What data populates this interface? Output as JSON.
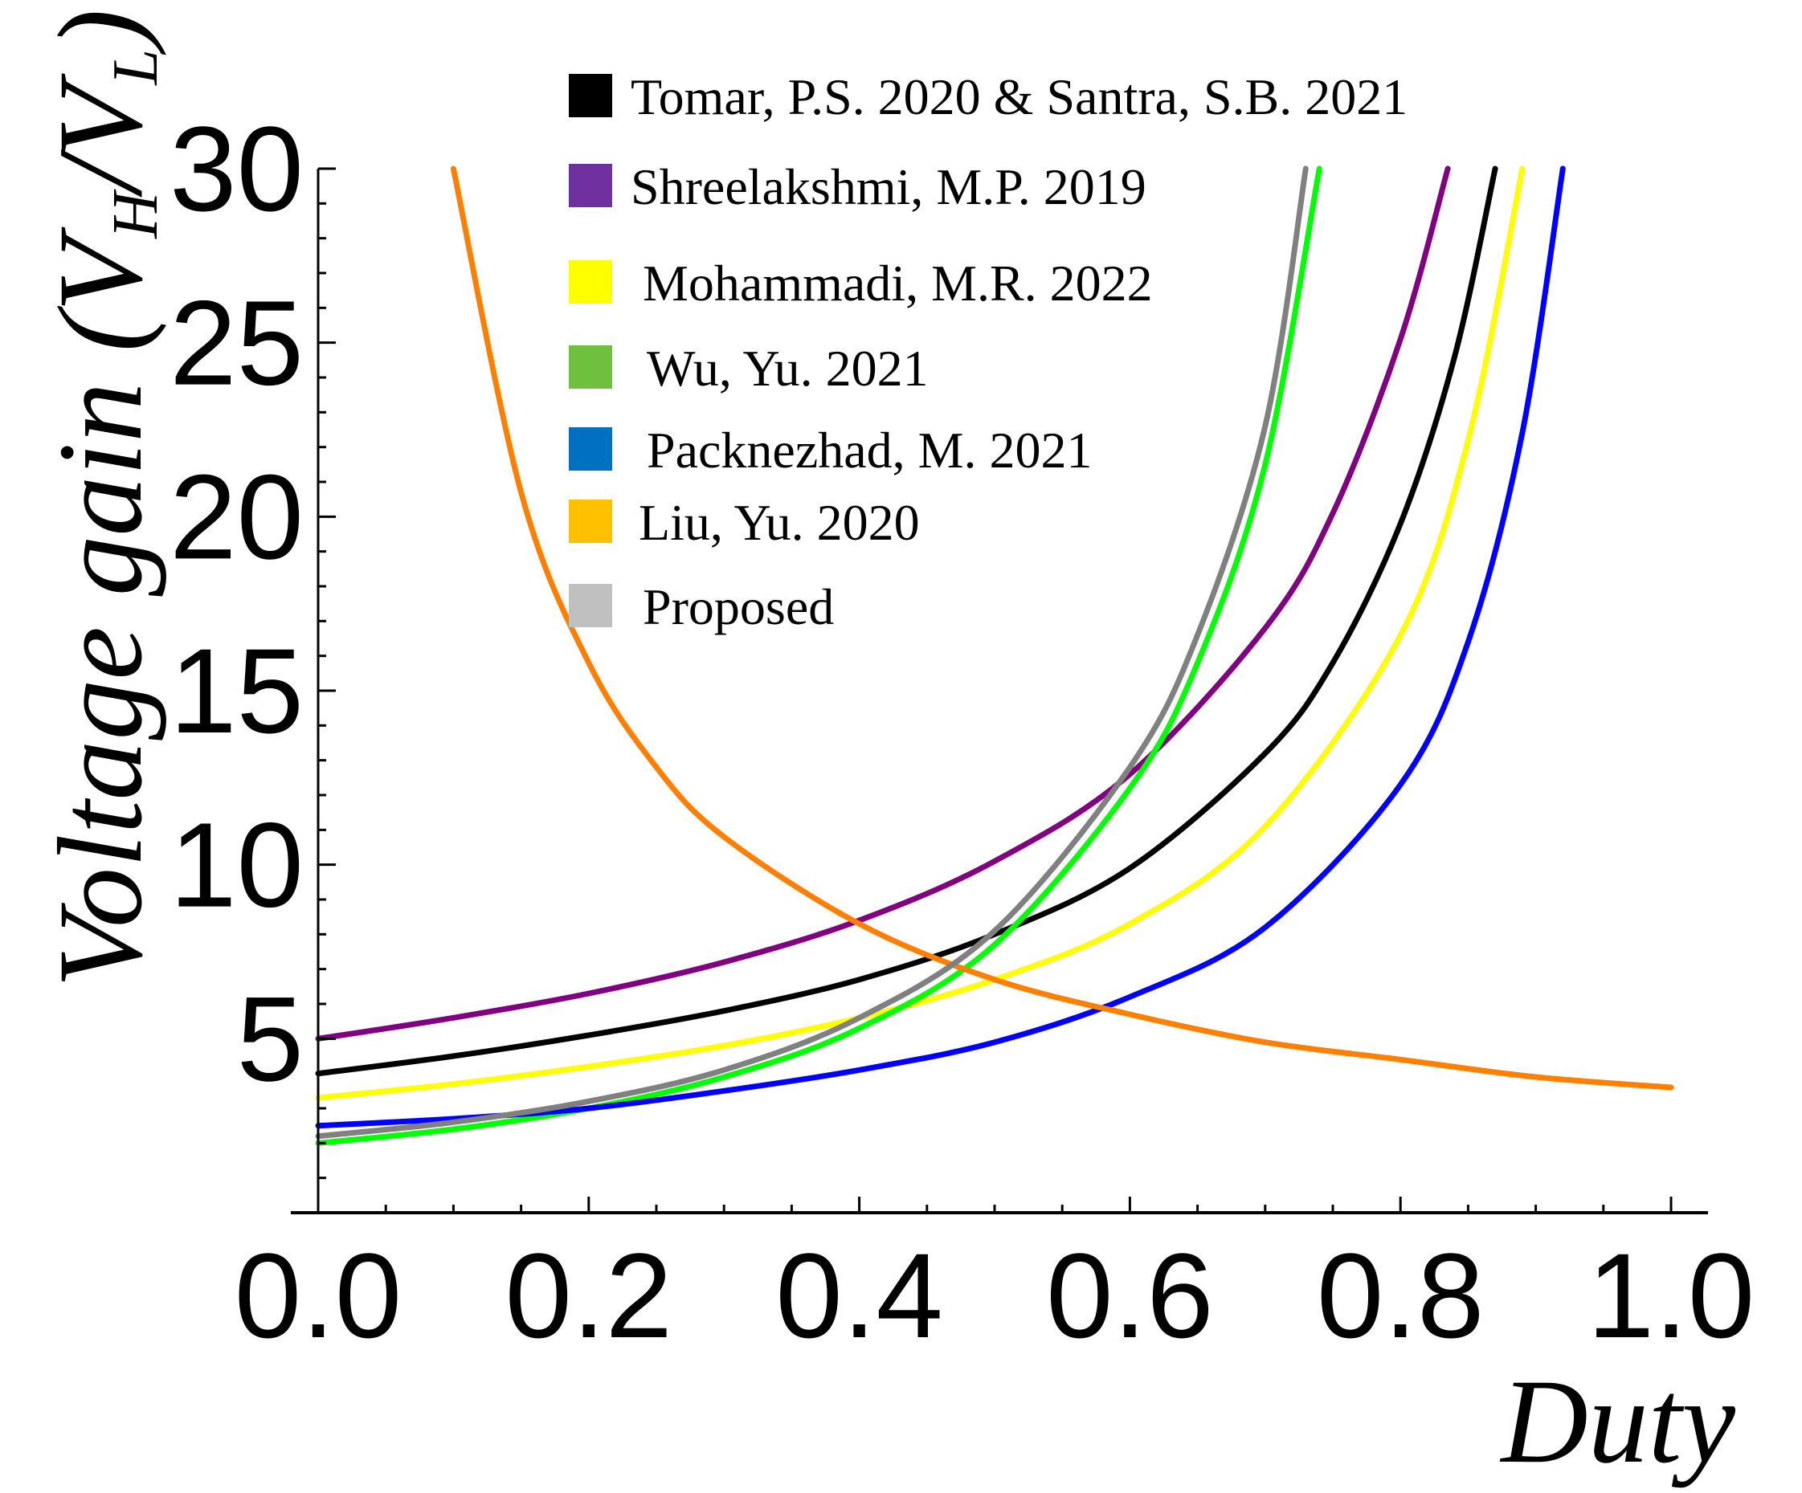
{
  "chart_data": {
    "type": "line",
    "title": "",
    "xlabel": "Duty",
    "ylabel": {
      "prefix": "Voltage gain (V",
      "sub1": "H",
      "mid": "/V",
      "sub2": "L",
      "suffix": ")"
    },
    "xlim": [
      0,
      1
    ],
    "ylim": [
      0,
      30
    ],
    "x_ticks": [
      "0.0",
      "0.2",
      "0.4",
      "0.6",
      "0.8",
      "1.0"
    ],
    "y_ticks": [
      {
        "value": 5,
        "label": "5"
      },
      {
        "value": 10,
        "label": "10"
      },
      {
        "value": 15,
        "label": "15"
      },
      {
        "value": 20,
        "label": "20"
      },
      {
        "value": 25,
        "label": "25"
      },
      {
        "value": 30,
        "label": "30"
      }
    ],
    "series": [
      {
        "name": "Tomar, P.S. 2020 & Santra, S.B. 2021",
        "legend_color": "#000000",
        "line_color": "#000000",
        "points": [
          [
            0.0,
            4.0
          ],
          [
            0.1,
            4.5
          ],
          [
            0.2,
            5.1
          ],
          [
            0.3,
            5.8
          ],
          [
            0.4,
            6.7
          ],
          [
            0.5,
            8.0
          ],
          [
            0.6,
            9.9
          ],
          [
            0.7,
            13.2
          ],
          [
            0.75,
            15.8
          ],
          [
            0.8,
            19.8
          ],
          [
            0.84,
            24.6
          ],
          [
            0.87,
            30.0
          ]
        ]
      },
      {
        "name": "Shreelakshmi, M.P. 2019",
        "legend_color": "#7030a0",
        "line_color": "#800080",
        "points": [
          [
            0.0,
            5.0
          ],
          [
            0.1,
            5.6
          ],
          [
            0.2,
            6.3
          ],
          [
            0.3,
            7.2
          ],
          [
            0.4,
            8.4
          ],
          [
            0.5,
            10.1
          ],
          [
            0.6,
            12.6
          ],
          [
            0.7,
            16.8
          ],
          [
            0.75,
            20.1
          ],
          [
            0.8,
            25.1
          ],
          [
            0.835,
            30.0
          ]
        ]
      },
      {
        "name": "Mohammadi, M.R. 2022",
        "legend_color": "#ffff00",
        "line_color": "#ffff00",
        "points": [
          [
            0.0,
            3.3
          ],
          [
            0.1,
            3.7
          ],
          [
            0.2,
            4.2
          ],
          [
            0.3,
            4.8
          ],
          [
            0.4,
            5.6
          ],
          [
            0.5,
            6.7
          ],
          [
            0.6,
            8.3
          ],
          [
            0.7,
            11.1
          ],
          [
            0.8,
            16.6
          ],
          [
            0.85,
            22.2
          ],
          [
            0.89,
            30.0
          ]
        ]
      },
      {
        "name": "Wu, Yu. 2021",
        "legend_color": "#70c040",
        "line_color": "#00ff00",
        "points": [
          [
            0.0,
            2.0
          ],
          [
            0.1,
            2.4
          ],
          [
            0.2,
            3.0
          ],
          [
            0.3,
            3.9
          ],
          [
            0.4,
            5.3
          ],
          [
            0.5,
            7.7
          ],
          [
            0.6,
            12.2
          ],
          [
            0.65,
            15.8
          ],
          [
            0.7,
            21.5
          ],
          [
            0.74,
            30.0
          ]
        ]
      },
      {
        "name": "Packnezhad, M. 2021",
        "legend_color": "#0070c0",
        "line_color": "#0000ff",
        "points": [
          [
            0.0,
            2.5
          ],
          [
            0.1,
            2.7
          ],
          [
            0.2,
            3.0
          ],
          [
            0.3,
            3.5
          ],
          [
            0.4,
            4.1
          ],
          [
            0.5,
            4.9
          ],
          [
            0.6,
            6.2
          ],
          [
            0.7,
            8.2
          ],
          [
            0.8,
            12.3
          ],
          [
            0.85,
            16.4
          ],
          [
            0.89,
            22.4
          ],
          [
            0.92,
            30.0
          ]
        ]
      },
      {
        "name": "Liu, Yu. 2020",
        "legend_color": "#ffc000",
        "line_color": "#ff8000",
        "points": [
          [
            0.1,
            30.0
          ],
          [
            0.15,
            20.7
          ],
          [
            0.2,
            15.8
          ],
          [
            0.25,
            12.8
          ],
          [
            0.3,
            10.8
          ],
          [
            0.4,
            8.3
          ],
          [
            0.5,
            6.7
          ],
          [
            0.6,
            5.7
          ],
          [
            0.7,
            4.9
          ],
          [
            0.8,
            4.4
          ],
          [
            0.9,
            3.9
          ],
          [
            1.0,
            3.6
          ]
        ]
      },
      {
        "name": "Proposed",
        "legend_color": "#c0c0c0",
        "line_color": "#808080",
        "points": [
          [
            0.0,
            2.2
          ],
          [
            0.1,
            2.6
          ],
          [
            0.2,
            3.2
          ],
          [
            0.3,
            4.1
          ],
          [
            0.4,
            5.6
          ],
          [
            0.5,
            8.1
          ],
          [
            0.6,
            12.8
          ],
          [
            0.65,
            16.6
          ],
          [
            0.7,
            22.6
          ],
          [
            0.73,
            30.0
          ]
        ]
      }
    ]
  }
}
